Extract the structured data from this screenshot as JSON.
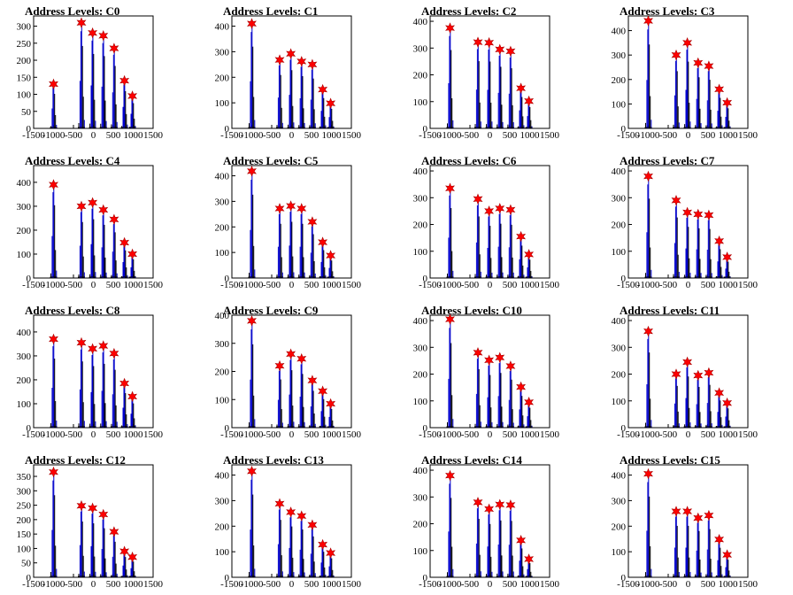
{
  "chart_data": [
    {
      "title": "Address Levels: C0",
      "type": "bar",
      "xlim": [
        -1500,
        1500
      ],
      "ylim": [
        0,
        330
      ],
      "yticks": [
        0,
        50,
        100,
        150,
        200,
        250,
        300
      ],
      "xticks": [
        -1500,
        -1000,
        -500,
        0,
        500,
        1000,
        1500
      ],
      "x": [
        -1000,
        -300,
        -20,
        250,
        520,
        780,
        980
      ],
      "peaks": [
        130,
        310,
        280,
        272,
        235,
        140,
        95
      ]
    },
    {
      "title": "Address Levels: C1",
      "type": "bar",
      "xlim": [
        -1500,
        1500
      ],
      "ylim": [
        0,
        440
      ],
      "yticks": [
        0,
        100,
        200,
        300,
        400
      ],
      "xticks": [
        -1500,
        -1000,
        -500,
        0,
        500,
        1000,
        1500
      ],
      "x": [
        -1000,
        -300,
        -20,
        250,
        520,
        780,
        980
      ],
      "peaks": [
        410,
        268,
        292,
        262,
        250,
        152,
        98
      ]
    },
    {
      "title": "Address Levels: C2",
      "type": "bar",
      "xlim": [
        -1500,
        1500
      ],
      "ylim": [
        0,
        420
      ],
      "yticks": [
        0,
        100,
        200,
        300,
        400
      ],
      "xticks": [
        -1500,
        -1000,
        -500,
        0,
        500,
        1000,
        1500
      ],
      "x": [
        -1000,
        -300,
        -20,
        250,
        520,
        780,
        980
      ],
      "peaks": [
        375,
        322,
        320,
        295,
        288,
        150,
        102
      ]
    },
    {
      "title": "Address Levels: C3",
      "type": "bar",
      "xlim": [
        -1500,
        1500
      ],
      "ylim": [
        0,
        460
      ],
      "yticks": [
        0,
        100,
        200,
        300,
        400
      ],
      "xticks": [
        -1500,
        -1000,
        -500,
        0,
        500,
        1000,
        1500
      ],
      "x": [
        -1000,
        -300,
        -20,
        250,
        520,
        780,
        980
      ],
      "peaks": [
        440,
        300,
        350,
        268,
        255,
        160,
        105
      ]
    },
    {
      "title": "Address Levels: C4",
      "type": "bar",
      "xlim": [
        -1500,
        1500
      ],
      "ylim": [
        0,
        470
      ],
      "yticks": [
        0,
        100,
        200,
        300,
        400
      ],
      "xticks": [
        -1500,
        -1000,
        -500,
        0,
        500,
        1000,
        1500
      ],
      "x": [
        -1000,
        -300,
        -20,
        250,
        520,
        780,
        980
      ],
      "peaks": [
        390,
        300,
        315,
        285,
        245,
        148,
        100
      ]
    },
    {
      "title": "Address Levels: C5",
      "type": "bar",
      "xlim": [
        -1500,
        1500
      ],
      "ylim": [
        0,
        440
      ],
      "yticks": [
        0,
        100,
        200,
        300,
        400
      ],
      "xticks": [
        -1500,
        -1000,
        -500,
        0,
        500,
        1000,
        1500
      ],
      "x": [
        -1000,
        -300,
        -20,
        250,
        520,
        780,
        980
      ],
      "peaks": [
        418,
        272,
        282,
        272,
        220,
        140,
        88
      ]
    },
    {
      "title": "Address Levels: C6",
      "type": "bar",
      "xlim": [
        -1500,
        1500
      ],
      "ylim": [
        0,
        420
      ],
      "yticks": [
        0,
        100,
        200,
        300,
        400
      ],
      "xticks": [
        -1500,
        -1000,
        -500,
        0,
        500,
        1000,
        1500
      ],
      "x": [
        -1000,
        -300,
        -20,
        250,
        520,
        780,
        980
      ],
      "peaks": [
        335,
        295,
        250,
        260,
        255,
        155,
        88
      ]
    },
    {
      "title": "Address Levels: C7",
      "type": "bar",
      "xlim": [
        -1500,
        1500
      ],
      "ylim": [
        0,
        420
      ],
      "yticks": [
        0,
        100,
        200,
        300,
        400
      ],
      "xticks": [
        -1500,
        -1000,
        -500,
        0,
        500,
        1000,
        1500
      ],
      "x": [
        -1000,
        -300,
        -20,
        250,
        520,
        780,
        980
      ],
      "peaks": [
        380,
        290,
        245,
        238,
        235,
        138,
        78
      ]
    },
    {
      "title": "Address Levels: C8",
      "type": "bar",
      "xlim": [
        -1500,
        1500
      ],
      "ylim": [
        0,
        470
      ],
      "yticks": [
        0,
        100,
        200,
        300,
        400
      ],
      "xticks": [
        -1500,
        -1000,
        -500,
        0,
        500,
        1000,
        1500
      ],
      "x": [
        -1000,
        -300,
        -20,
        250,
        520,
        780,
        980
      ],
      "peaks": [
        370,
        355,
        330,
        342,
        310,
        185,
        130
      ]
    },
    {
      "title": "Address Levels: C9",
      "type": "bar",
      "xlim": [
        -1500,
        1500
      ],
      "ylim": [
        0,
        400
      ],
      "yticks": [
        0,
        100,
        200,
        300,
        400
      ],
      "xticks": [
        -1500,
        -1000,
        -500,
        0,
        500,
        1000,
        1500
      ],
      "x": [
        -1000,
        -300,
        -20,
        250,
        520,
        780,
        980
      ],
      "peaks": [
        380,
        220,
        262,
        245,
        168,
        130,
        85
      ]
    },
    {
      "title": "Address Levels: C10",
      "type": "bar",
      "xlim": [
        -1500,
        1500
      ],
      "ylim": [
        0,
        420
      ],
      "yticks": [
        0,
        100,
        200,
        300,
        400
      ],
      "xticks": [
        -1500,
        -1000,
        -500,
        0,
        500,
        1000,
        1500
      ],
      "x": [
        -1000,
        -300,
        -20,
        250,
        520,
        780,
        980
      ],
      "peaks": [
        405,
        280,
        252,
        262,
        230,
        152,
        95
      ]
    },
    {
      "title": "Address Levels: C11",
      "type": "bar",
      "xlim": [
        -1500,
        1500
      ],
      "ylim": [
        0,
        420
      ],
      "yticks": [
        0,
        100,
        200,
        300,
        400
      ],
      "xticks": [
        -1500,
        -1000,
        -500,
        0,
        500,
        1000,
        1500
      ],
      "x": [
        -1000,
        -300,
        -20,
        250,
        520,
        780,
        980
      ],
      "peaks": [
        360,
        200,
        245,
        195,
        205,
        130,
        92
      ]
    },
    {
      "title": "Address Levels: C12",
      "type": "bar",
      "xlim": [
        -1500,
        1500
      ],
      "ylim": [
        0,
        390
      ],
      "yticks": [
        0,
        50,
        100,
        150,
        200,
        250,
        300,
        350
      ],
      "xticks": [
        -1500,
        -1000,
        -500,
        0,
        500,
        1000,
        1500
      ],
      "x": [
        -1000,
        -300,
        -20,
        250,
        520,
        780,
        980
      ],
      "peaks": [
        365,
        248,
        240,
        218,
        158,
        90,
        70
      ]
    },
    {
      "title": "Address Levels: C13",
      "type": "bar",
      "xlim": [
        -1500,
        1500
      ],
      "ylim": [
        0,
        440
      ],
      "yticks": [
        0,
        100,
        200,
        300,
        400
      ],
      "xticks": [
        -1500,
        -1000,
        -500,
        0,
        500,
        1000,
        1500
      ],
      "x": [
        -1000,
        -300,
        -20,
        250,
        520,
        780,
        980
      ],
      "peaks": [
        415,
        288,
        255,
        240,
        205,
        128,
        95
      ]
    },
    {
      "title": "Address Levels: C14",
      "type": "bar",
      "xlim": [
        -1500,
        1500
      ],
      "ylim": [
        0,
        420
      ],
      "yticks": [
        0,
        100,
        200,
        300,
        400
      ],
      "xticks": [
        -1500,
        -1000,
        -500,
        0,
        500,
        1000,
        1500
      ],
      "x": [
        -1000,
        -300,
        -20,
        250,
        520,
        780,
        980
      ],
      "peaks": [
        380,
        280,
        255,
        272,
        270,
        138,
        68
      ]
    },
    {
      "title": "Address Levels: C15",
      "type": "bar",
      "xlim": [
        -1500,
        1500
      ],
      "ylim": [
        0,
        440
      ],
      "yticks": [
        0,
        100,
        200,
        300,
        400
      ],
      "xticks": [
        -1500,
        -1000,
        -500,
        0,
        500,
        1000,
        1500
      ],
      "x": [
        -1000,
        -300,
        -20,
        250,
        520,
        780,
        980
      ],
      "peaks": [
        405,
        258,
        258,
        232,
        242,
        148,
        88
      ]
    }
  ],
  "colors": {
    "histogram": "#0000cc",
    "secondary": "#000000",
    "marker": "#ff0000",
    "axis": "#000000"
  }
}
